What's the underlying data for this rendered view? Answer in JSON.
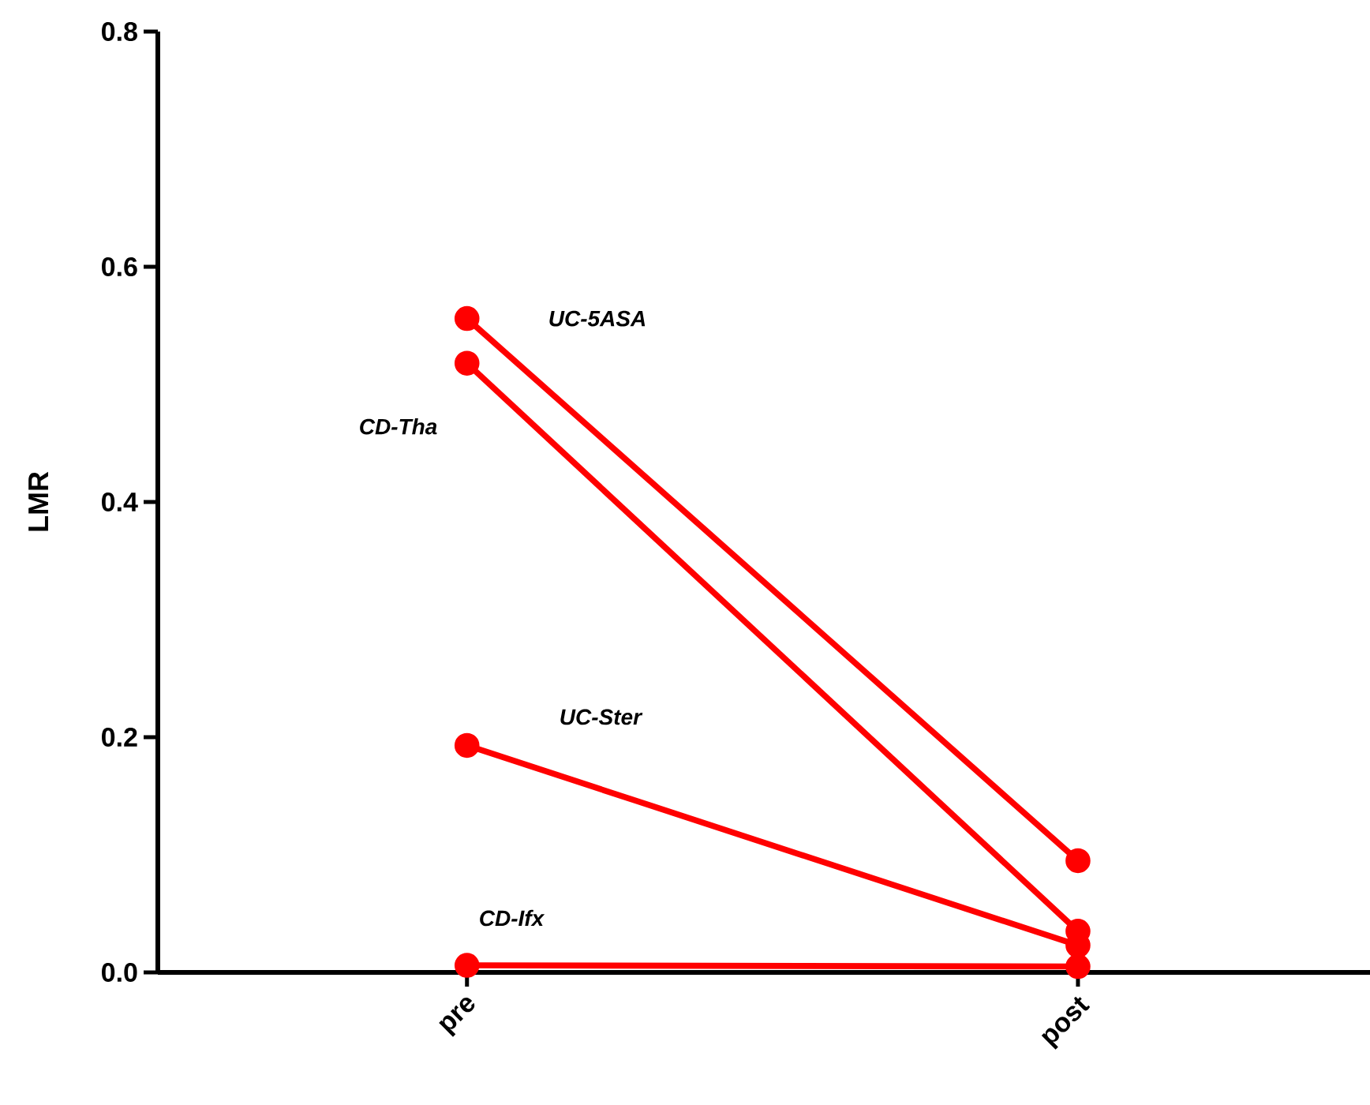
{
  "chart_data": {
    "type": "line",
    "ylabel": "LMR",
    "categories": [
      "pre",
      "post"
    ],
    "series": [
      {
        "name": "UC-5ASA",
        "color": "#ff0000",
        "values": [
          0.556,
          0.095
        ]
      },
      {
        "name": "CD-Tha",
        "color": "#ff0000",
        "values": [
          0.518,
          0.035
        ]
      },
      {
        "name": "UC-Ster",
        "color": "#ff0000",
        "values": [
          0.193,
          0.023
        ]
      },
      {
        "name": "CD-Ifx",
        "color": "#ff0000",
        "values": [
          0.006,
          0.005
        ]
      }
    ],
    "ylim": [
      0,
      0.8
    ],
    "yticks": [
      {
        "value": 0,
        "label": "0.0"
      },
      0.2,
      0.4,
      0.6,
      0.8
    ],
    "marker": "circle",
    "line_style": "solid",
    "grid": false
  }
}
